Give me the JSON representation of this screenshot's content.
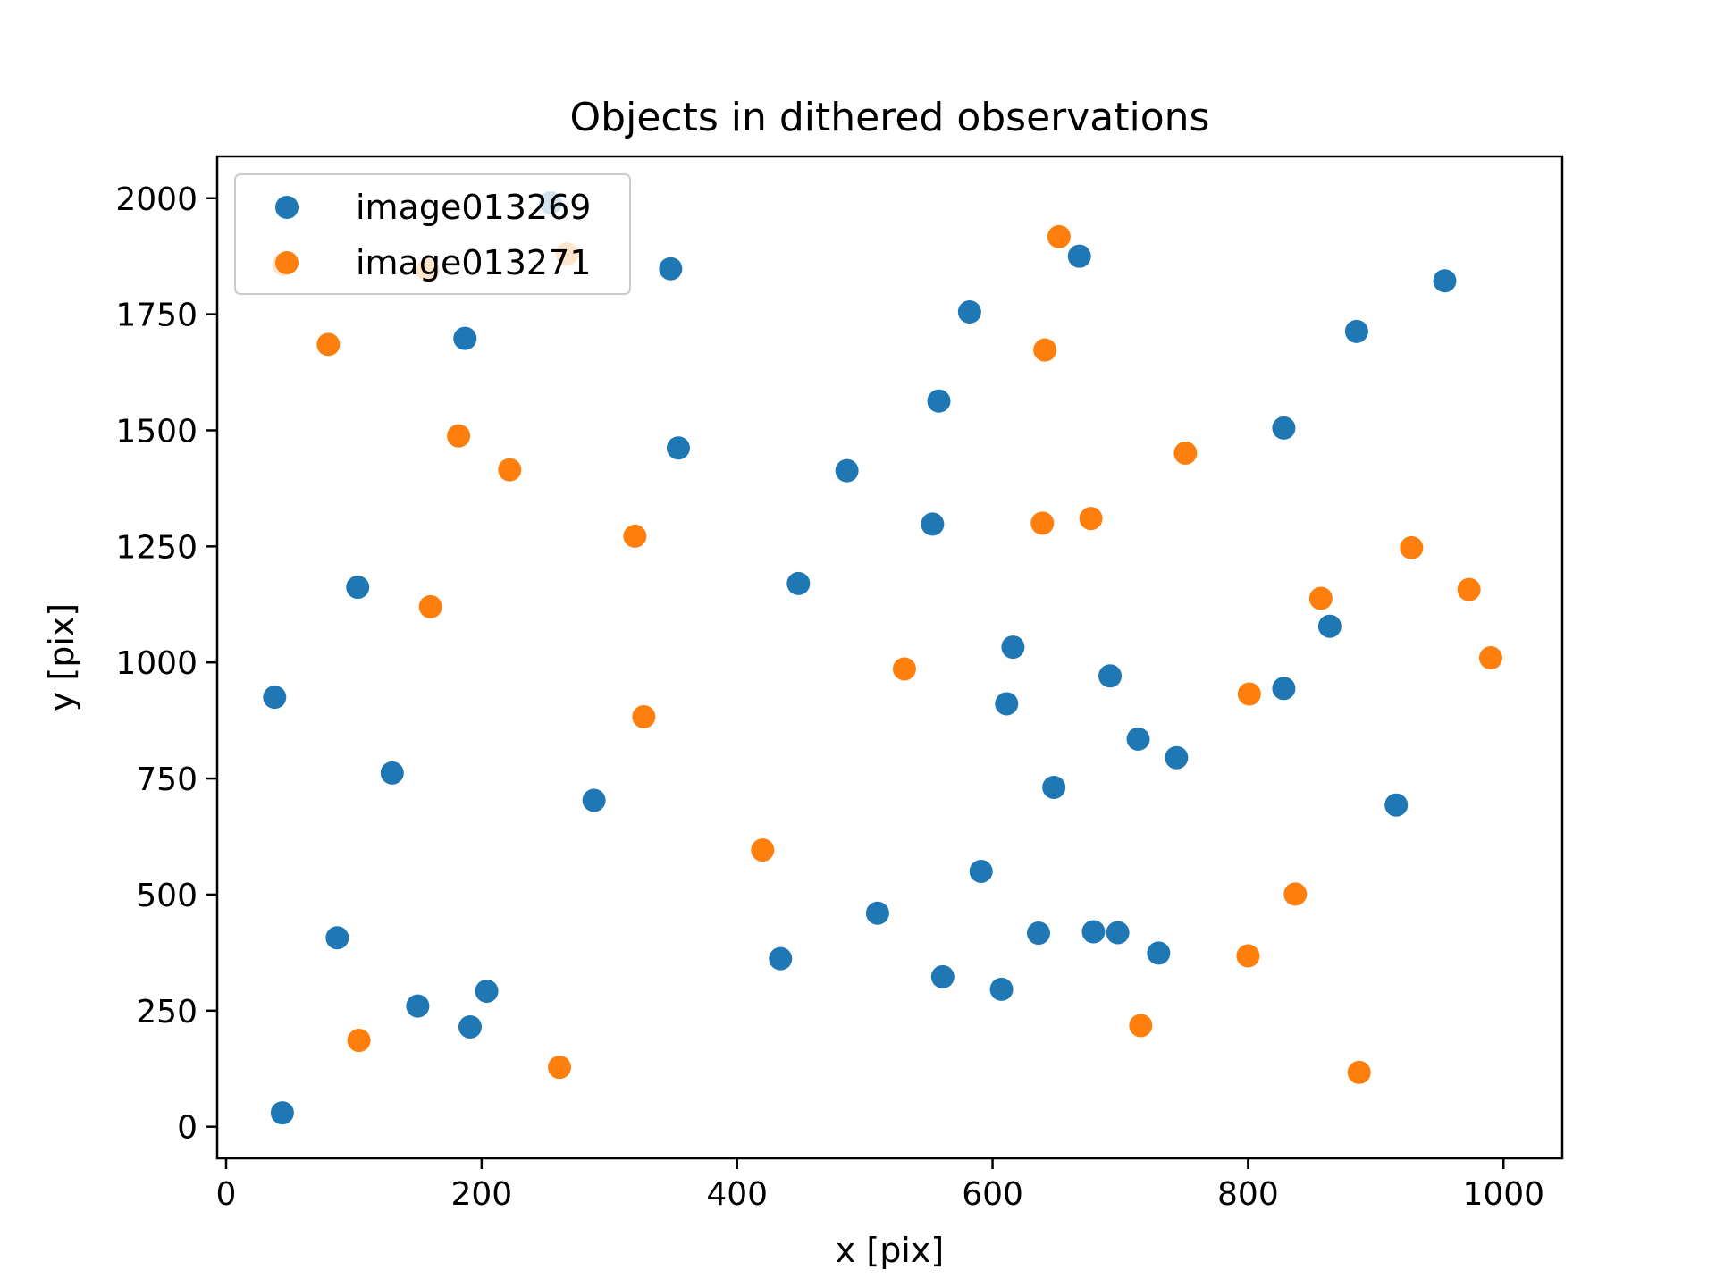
{
  "chart_data": {
    "type": "scatter",
    "title": "Objects in dithered observations",
    "xlabel": "x [pix]",
    "ylabel": "y [pix]",
    "xlim": [
      -7,
      1046
    ],
    "ylim": [
      -68,
      2090
    ],
    "xticks": [
      0,
      200,
      400,
      600,
      800,
      1000
    ],
    "xtick_labels": [
      "0",
      "200",
      "400",
      "600",
      "800",
      "1000"
    ],
    "yticks": [
      0,
      250,
      500,
      750,
      1000,
      1250,
      1500,
      1750,
      2000
    ],
    "ytick_labels": [
      "0",
      "250",
      "500",
      "750",
      "1000",
      "1250",
      "1500",
      "1750",
      "2000"
    ],
    "grid": false,
    "legend_position": "upper-left",
    "series": [
      {
        "name": "image013269",
        "color": "#1f77b4",
        "points": [
          [
            44,
            30
          ],
          [
            87,
            407
          ],
          [
            150,
            260
          ],
          [
            191,
            215
          ],
          [
            204,
            292
          ],
          [
            288,
            703
          ],
          [
            130,
            762
          ],
          [
            38,
            925
          ],
          [
            103,
            1162
          ],
          [
            187,
            1698
          ],
          [
            254,
            1990
          ],
          [
            348,
            1848
          ],
          [
            354,
            1462
          ],
          [
            448,
            1170
          ],
          [
            486,
            1413
          ],
          [
            434,
            362
          ],
          [
            510,
            460
          ],
          [
            553,
            1298
          ],
          [
            558,
            1563
          ],
          [
            582,
            1755
          ],
          [
            561,
            323
          ],
          [
            591,
            550
          ],
          [
            607,
            296
          ],
          [
            616,
            1033
          ],
          [
            611,
            911
          ],
          [
            636,
            417
          ],
          [
            648,
            731
          ],
          [
            668,
            1875
          ],
          [
            679,
            420
          ],
          [
            698,
            418
          ],
          [
            692,
            971
          ],
          [
            714,
            835
          ],
          [
            730,
            374
          ],
          [
            744,
            795
          ],
          [
            828,
            1505
          ],
          [
            828,
            944
          ],
          [
            864,
            1078
          ],
          [
            885,
            1713
          ],
          [
            916,
            693
          ],
          [
            954,
            1822
          ]
        ]
      },
      {
        "name": "image013271",
        "color": "#ff7f0e",
        "points": [
          [
            45,
            1857
          ],
          [
            80,
            1685
          ],
          [
            158,
            1845
          ],
          [
            160,
            1120
          ],
          [
            104,
            186
          ],
          [
            182,
            1488
          ],
          [
            222,
            1415
          ],
          [
            267,
            1880
          ],
          [
            261,
            128
          ],
          [
            320,
            1272
          ],
          [
            327,
            883
          ],
          [
            420,
            596
          ],
          [
            531,
            986
          ],
          [
            639,
            1300
          ],
          [
            641,
            1673
          ],
          [
            652,
            1917
          ],
          [
            677,
            1310
          ],
          [
            716,
            218
          ],
          [
            751,
            1451
          ],
          [
            800,
            368
          ],
          [
            801,
            932
          ],
          [
            837,
            501
          ],
          [
            857,
            1138
          ],
          [
            887,
            117
          ],
          [
            928,
            1247
          ],
          [
            973,
            1157
          ],
          [
            990,
            1010
          ]
        ]
      }
    ]
  }
}
